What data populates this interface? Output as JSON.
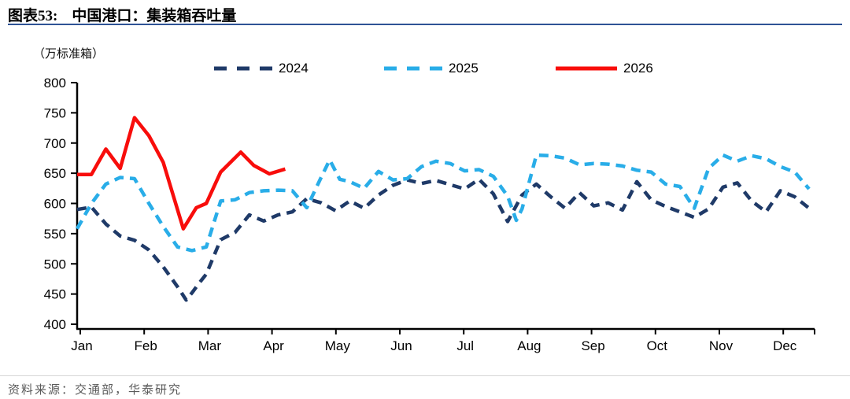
{
  "header": {
    "figure_label": "图表53:",
    "title": "中国港口：集装箱吞吐量"
  },
  "footer": {
    "source": "资料来源：交通部，华泰研究"
  },
  "chart_data": {
    "type": "line",
    "title": "中国港口：集装箱吞吐量",
    "unit_label": "（万标准箱）",
    "xlabel": "",
    "ylabel": "万标准箱",
    "ylim": [
      400,
      800
    ],
    "y_ticks": [
      400,
      450,
      500,
      550,
      600,
      650,
      700,
      750,
      800
    ],
    "x_tick_labels": [
      "Jan",
      "Feb",
      "Mar",
      "Apr",
      "May",
      "Jun",
      "Jul",
      "Aug",
      "Sep",
      "Oct",
      "Nov",
      "Dec"
    ],
    "x_unit": "week of year (0-51)",
    "grid": false,
    "legend_position": "top",
    "series": [
      {
        "name": "2024",
        "color": "#1f3a68",
        "style": "dashed",
        "x": [
          0,
          1,
          2,
          3,
          4,
          5,
          6,
          7,
          7.6,
          8,
          8.5,
          9,
          10,
          11,
          12,
          13,
          14,
          15,
          16,
          17,
          18,
          19,
          20,
          21,
          22,
          23,
          24,
          25,
          26,
          27,
          28,
          29,
          30,
          31,
          32,
          33,
          34,
          35,
          36,
          37,
          38,
          39,
          40,
          41,
          42,
          43,
          44,
          45,
          46,
          47,
          48,
          49,
          50,
          51
        ],
        "values": [
          590,
          594,
          566,
          546,
          539,
          523,
          495,
          462,
          440,
          452,
          468,
          483,
          540,
          552,
          581,
          571,
          581,
          586,
          608,
          601,
          588,
          604,
          592,
          614,
          630,
          639,
          633,
          638,
          631,
          624,
          640,
          616,
          570,
          614,
          632,
          611,
          592,
          618,
          596,
          601,
          589,
          636,
          606,
          595,
          586,
          577,
          591,
          627,
          634,
          604,
          586,
          621,
          611,
          592
        ]
      },
      {
        "name": "2025",
        "color": "#29ade8",
        "style": "dashed",
        "x": [
          0,
          1,
          2,
          3,
          4,
          5,
          6,
          7,
          8,
          9,
          10,
          11,
          12,
          13,
          14,
          15,
          16,
          17,
          17.6,
          18.3,
          19,
          20,
          21,
          22,
          23,
          24,
          25,
          26,
          27,
          28,
          29,
          30,
          30.6,
          31,
          32,
          33,
          34,
          35,
          36,
          37,
          38,
          39,
          40,
          41,
          42,
          43,
          44,
          45,
          46,
          47,
          48,
          49,
          50,
          51
        ],
        "values": [
          558,
          600,
          632,
          643,
          641,
          600,
          562,
          528,
          522,
          528,
          604,
          606,
          618,
          621,
          622,
          621,
          593,
          643,
          672,
          640,
          636,
          625,
          653,
          639,
          641,
          661,
          670,
          666,
          654,
          656,
          645,
          612,
          572,
          591,
          680,
          679,
          675,
          664,
          666,
          665,
          662,
          655,
          652,
          632,
          628,
          592,
          658,
          680,
          670,
          679,
          674,
          661,
          652,
          624
        ]
      },
      {
        "name": "2026",
        "color": "#f80d0b",
        "style": "solid",
        "x": [
          0,
          1,
          2,
          3,
          4,
          5,
          6,
          7.4,
          8.3,
          9,
          10,
          11.4,
          12.3,
          13.4,
          14.5
        ],
        "values": [
          648,
          648,
          690,
          658,
          742,
          712,
          668,
          558,
          593,
          600,
          652,
          685,
          663,
          649,
          657
        ]
      }
    ]
  }
}
